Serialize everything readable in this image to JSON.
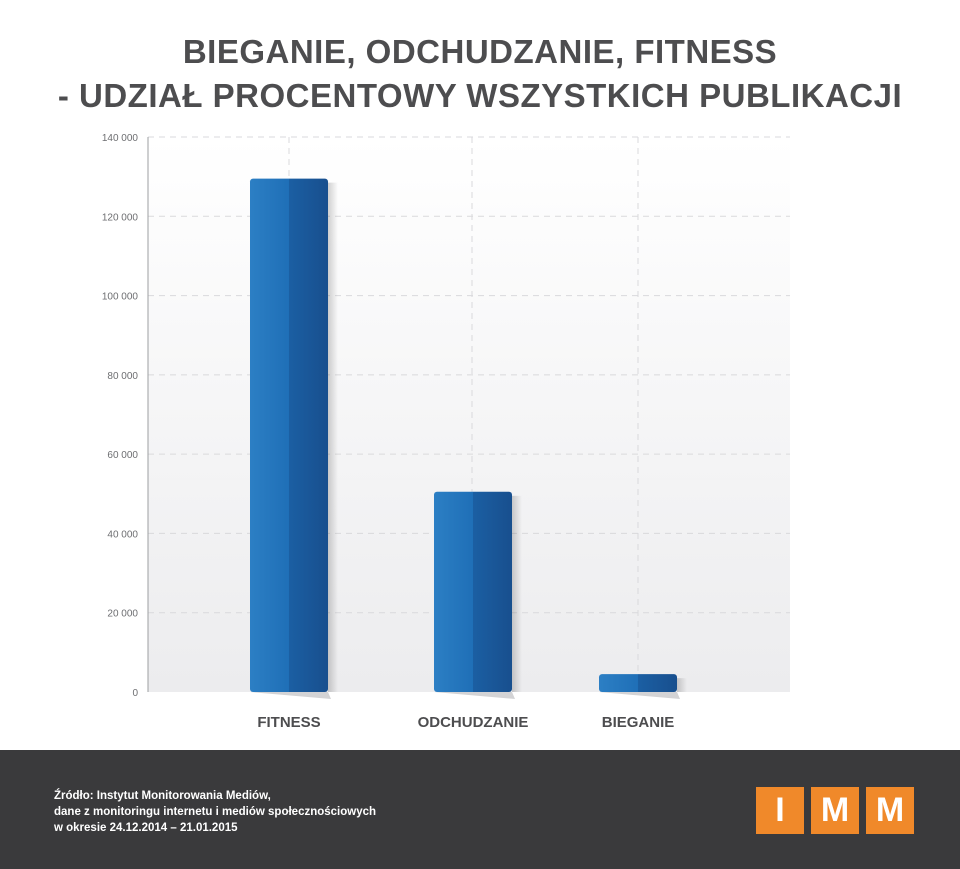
{
  "chart_data": {
    "type": "bar",
    "title_lines": [
      "BIEGANIE, ODCHUDZANIE, FITNESS",
      "- UDZIAŁ PROCENTOWY WSZYSTKICH PUBLIKACJI"
    ],
    "categories": [
      "FITNESS",
      "ODCHUDZANIE",
      "BIEGANIE"
    ],
    "values": [
      129500,
      50500,
      4500
    ],
    "ylim": [
      0,
      140000
    ],
    "yticks": [
      0,
      20000,
      40000,
      60000,
      80000,
      100000,
      120000,
      140000
    ],
    "ytick_labels": [
      "0",
      "20 000",
      "40 000",
      "60 000",
      "80 000",
      "100 000",
      "120 000",
      "140 000"
    ],
    "grid": true,
    "bar_color": "#1f6fb7",
    "xlabel": "",
    "ylabel": ""
  },
  "footer": {
    "source_lines": [
      "Źródło: Instytut Monitorowania Mediów,",
      "dane z monitoringu internetu i mediów społecznościowych",
      "w okresie 24.12.2014 – 21.01.2015"
    ],
    "logo_letters": [
      "I",
      "M",
      "M"
    ],
    "logo_color": "#f0892a"
  }
}
